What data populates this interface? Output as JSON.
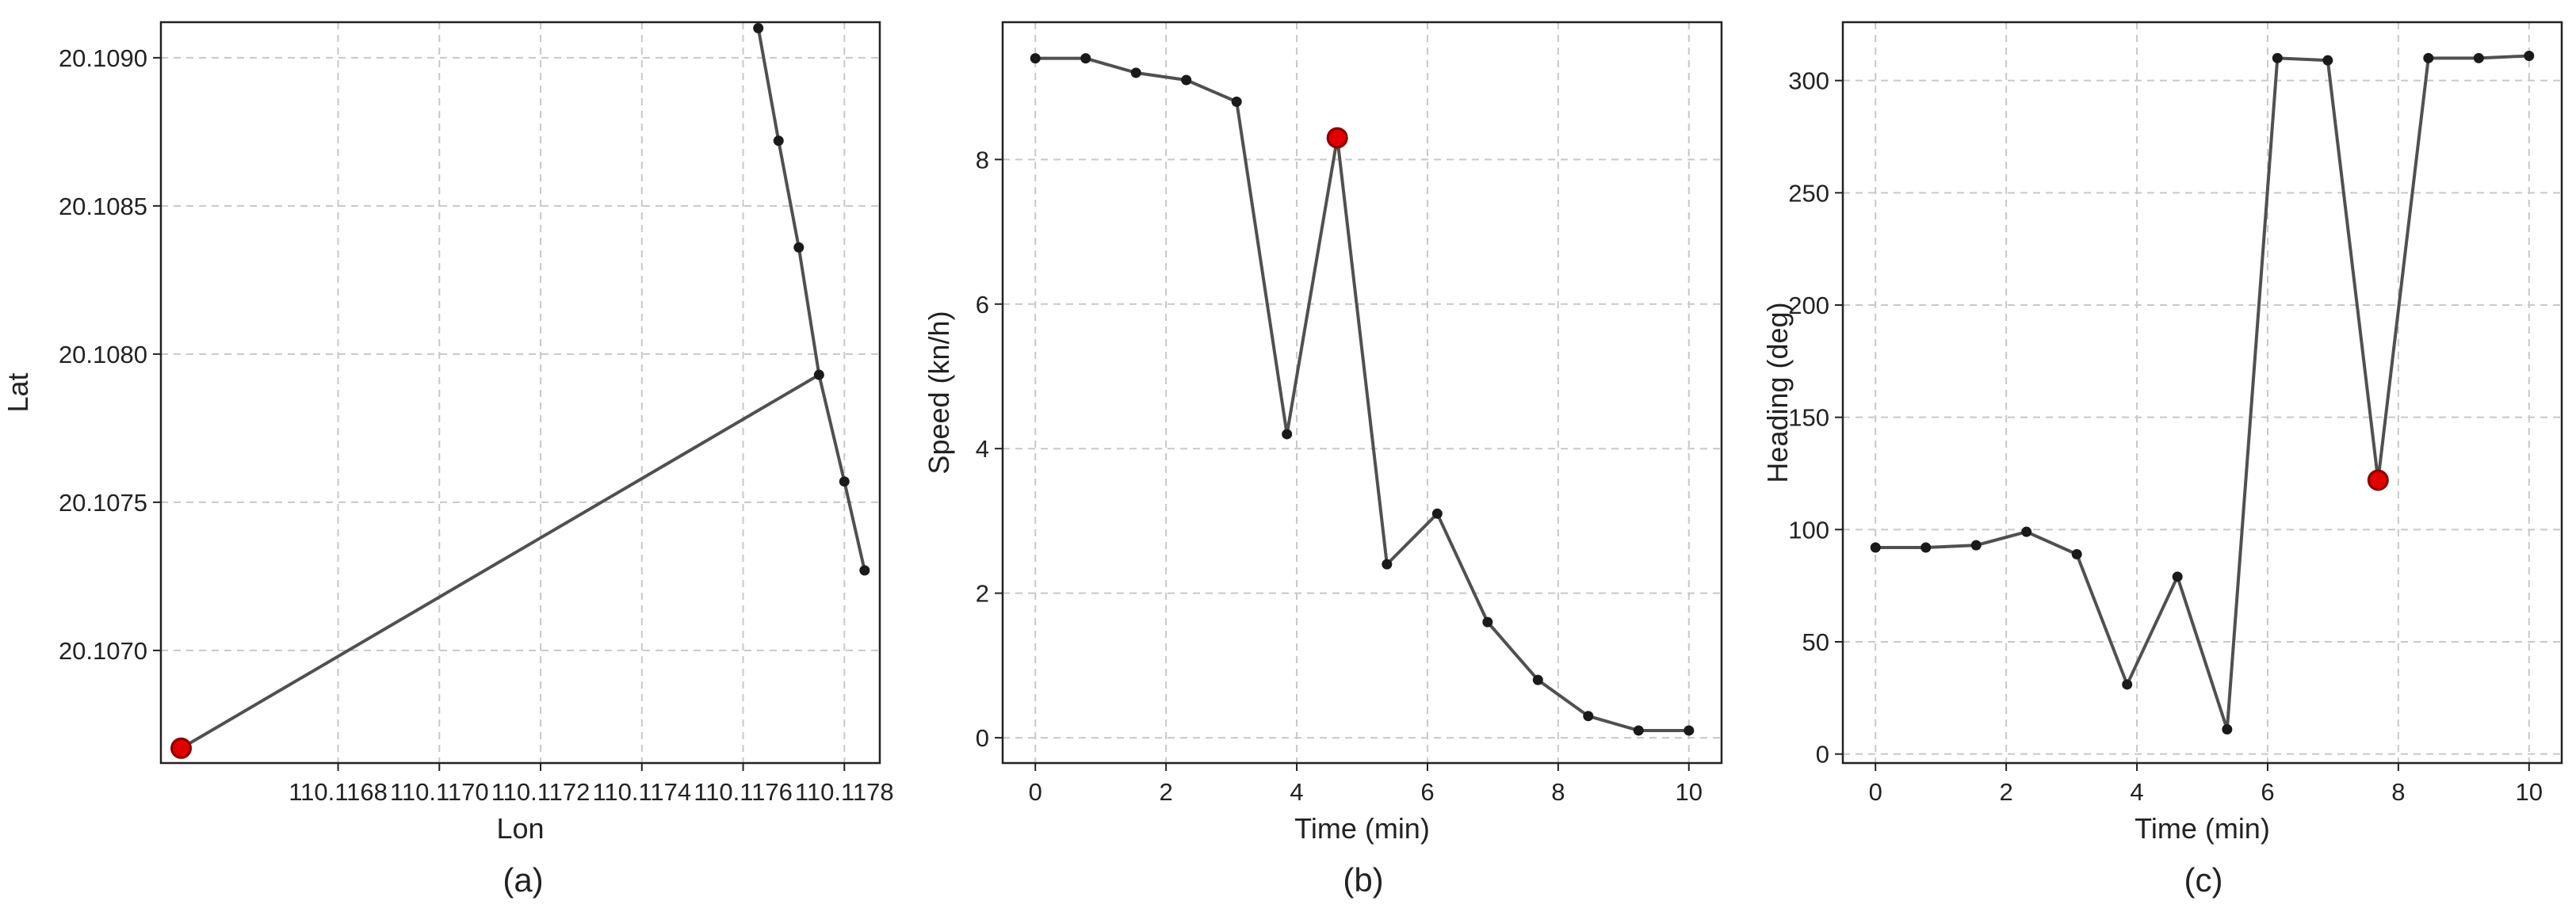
{
  "chart_data": [
    {
      "type": "line",
      "panel_label": "(a)",
      "xlabel": "Lon",
      "ylabel": "Lat",
      "xlim": [
        110.11645,
        110.11787
      ],
      "ylim": [
        20.10662,
        20.10912
      ],
      "xticks": [
        110.1168,
        110.117,
        110.1172,
        110.1174,
        110.1176,
        110.1178
      ],
      "xtick_labels": [
        "110.1168",
        "110.1170",
        "110.1172",
        "110.1174",
        "110.1176",
        "110.1178"
      ],
      "yticks": [
        20.107,
        20.1075,
        20.108,
        20.1085,
        20.109
      ],
      "ytick_labels": [
        "20.1070",
        "20.1075",
        "20.1080",
        "20.1085",
        "20.1090"
      ],
      "grid": true,
      "series": [
        {
          "name": "trajectory",
          "x": [
            110.11763,
            110.11767,
            110.11771,
            110.11775,
            110.1178,
            110.11784
          ],
          "y": [
            20.1091,
            20.10872,
            20.10836,
            20.10793,
            20.10757,
            20.10727
          ]
        }
      ],
      "connector": {
        "from_index": 3
      },
      "highlight": {
        "x": 110.11649,
        "y": 20.10667,
        "label": "anomaly"
      }
    },
    {
      "type": "line",
      "panel_label": "(b)",
      "xlabel": "Time (min)",
      "ylabel": "Speed (kn/h)",
      "xlim": [
        -0.5,
        10.5
      ],
      "ylim": [
        -0.35,
        9.9
      ],
      "xticks": [
        0,
        2,
        4,
        6,
        8,
        10
      ],
      "xtick_labels": [
        "0",
        "2",
        "4",
        "6",
        "8",
        "10"
      ],
      "yticks": [
        0,
        2,
        4,
        6,
        8
      ],
      "ytick_labels": [
        "0",
        "2",
        "4",
        "6",
        "8"
      ],
      "grid": true,
      "series": [
        {
          "name": "speed",
          "x": [
            0,
            0.77,
            1.54,
            2.31,
            3.08,
            3.85,
            4.62,
            5.38,
            6.15,
            6.92,
            7.69,
            8.46,
            9.23,
            10
          ],
          "y": [
            9.4,
            9.4,
            9.2,
            9.1,
            8.8,
            4.2,
            8.3,
            2.4,
            3.1,
            1.6,
            0.8,
            0.3,
            0.1,
            0.1
          ]
        }
      ],
      "highlight": {
        "x": 4.62,
        "y": 8.3,
        "label": "anomaly"
      }
    },
    {
      "type": "line",
      "panel_label": "(c)",
      "xlabel": "Time (min)",
      "ylabel": "Heading (deg)",
      "xlim": [
        -0.5,
        10.5
      ],
      "ylim": [
        -4,
        326
      ],
      "xticks": [
        0,
        2,
        4,
        6,
        8,
        10
      ],
      "xtick_labels": [
        "0",
        "2",
        "4",
        "6",
        "8",
        "10"
      ],
      "yticks": [
        0,
        50,
        100,
        150,
        200,
        250,
        300
      ],
      "ytick_labels": [
        "0",
        "50",
        "100",
        "150",
        "200",
        "250",
        "300"
      ],
      "grid": true,
      "series": [
        {
          "name": "heading",
          "x": [
            0,
            0.77,
            1.54,
            2.31,
            3.08,
            3.85,
            4.62,
            5.38,
            6.15,
            6.92,
            7.69,
            8.46,
            9.23,
            10
          ],
          "y": [
            92,
            92,
            93,
            99,
            89,
            31,
            79,
            11,
            310,
            309,
            122,
            310,
            310,
            311
          ]
        }
      ],
      "highlight": {
        "x": 7.69,
        "y": 122,
        "label": "anomaly"
      }
    }
  ],
  "colors": {
    "line": "#505050",
    "point": "#1a1a1a",
    "highlight_fill": "#e00000",
    "highlight_edge": "#8b0000"
  }
}
